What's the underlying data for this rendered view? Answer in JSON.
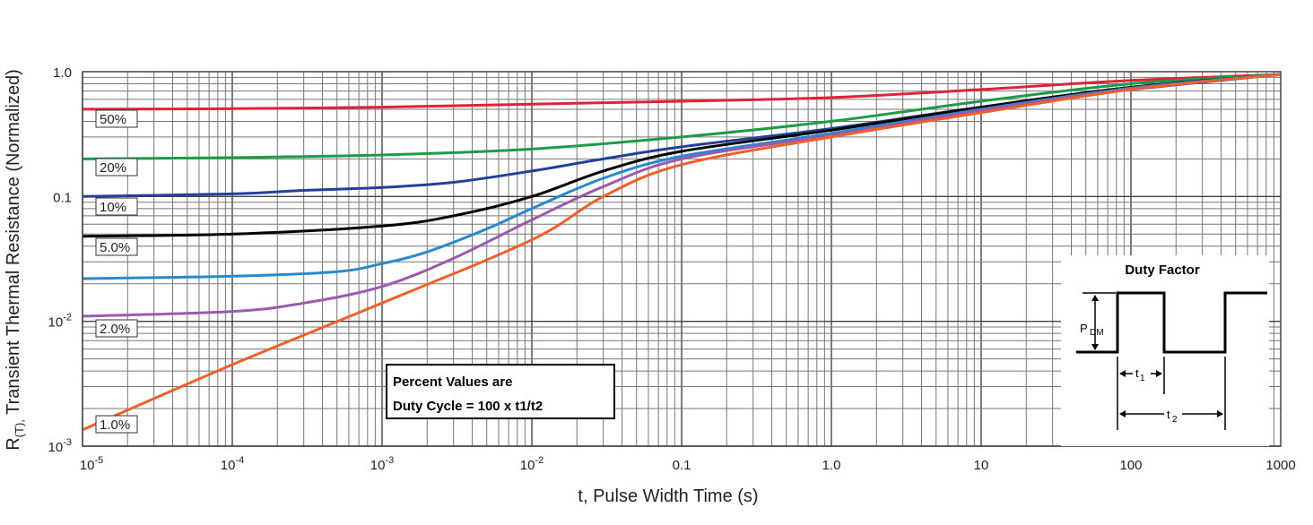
{
  "chart_data": {
    "type": "line",
    "x_scale": "log",
    "y_scale": "log",
    "xlim": [
      1e-05,
      1000
    ],
    "ylim": [
      0.001,
      1.0
    ],
    "grid": true,
    "xlabel": "t, Pulse Width Time (s)",
    "ylabel_prefix": "R",
    "ylabel_sub": "(T),",
    "ylabel": "Transient Thermal Resistance (Normalized)",
    "x_ticks": [
      {
        "base": "10",
        "exp": "-5"
      },
      {
        "base": "10",
        "exp": "-4"
      },
      {
        "base": "10",
        "exp": "-3"
      },
      {
        "base": "10",
        "exp": "-2"
      },
      {
        "base": "0.1",
        "exp": ""
      },
      {
        "base": "1.0",
        "exp": ""
      },
      {
        "base": "10",
        "exp": ""
      },
      {
        "base": "100",
        "exp": ""
      },
      {
        "base": "1000",
        "exp": ""
      }
    ],
    "y_ticks": [
      {
        "base": "1.0",
        "exp": ""
      },
      {
        "base": "0.1",
        "exp": ""
      },
      {
        "base": "10",
        "exp": "-2"
      },
      {
        "base": "10",
        "exp": "-3"
      }
    ],
    "series": [
      {
        "name": "50%",
        "color": "#e0223a",
        "x": [
          1e-05,
          0.0001,
          0.001,
          0.01,
          0.1,
          1,
          10,
          100,
          1000
        ],
        "y": [
          0.5,
          0.505,
          0.52,
          0.55,
          0.58,
          0.62,
          0.72,
          0.85,
          0.95
        ]
      },
      {
        "name": "20%",
        "color": "#1f9a4a",
        "x": [
          1e-05,
          0.0001,
          0.001,
          0.01,
          0.1,
          1,
          10,
          100,
          1000
        ],
        "y": [
          0.2,
          0.205,
          0.215,
          0.24,
          0.3,
          0.4,
          0.58,
          0.8,
          0.95
        ]
      },
      {
        "name": "10%",
        "color": "#24409a",
        "x": [
          1e-05,
          0.0001,
          0.0003,
          0.001,
          0.003,
          0.01,
          0.03,
          0.1,
          1,
          10,
          100,
          1000
        ],
        "y": [
          0.1,
          0.105,
          0.112,
          0.118,
          0.13,
          0.16,
          0.2,
          0.25,
          0.35,
          0.52,
          0.72,
          0.95
        ]
      },
      {
        "name": "5.0%",
        "color": "#000000",
        "x": [
          1e-05,
          0.0001,
          0.001,
          0.003,
          0.01,
          0.03,
          0.1,
          1,
          10,
          100,
          1000
        ],
        "y": [
          0.048,
          0.05,
          0.058,
          0.07,
          0.1,
          0.16,
          0.23,
          0.34,
          0.52,
          0.75,
          0.95
        ]
      },
      {
        "name": "2.0%",
        "color": "#2a88cc",
        "x": [
          1e-05,
          0.0001,
          0.0005,
          0.001,
          0.002,
          0.005,
          0.01,
          0.03,
          0.1,
          1,
          10,
          100,
          1000
        ],
        "y": [
          0.022,
          0.023,
          0.025,
          0.029,
          0.036,
          0.055,
          0.08,
          0.14,
          0.21,
          0.32,
          0.5,
          0.74,
          0.95
        ]
      },
      {
        "name": "1.0%",
        "color": "#9a5ab0",
        "x": [
          1e-05,
          0.0001,
          0.0003,
          0.001,
          0.003,
          0.01,
          0.03,
          0.1,
          1,
          10,
          100,
          1000
        ],
        "y": [
          0.011,
          0.012,
          0.014,
          0.019,
          0.032,
          0.065,
          0.12,
          0.2,
          0.31,
          0.49,
          0.73,
          0.95
        ]
      },
      {
        "name": "",
        "color": "#f0602a",
        "x": [
          1e-05,
          0.0001,
          0.001,
          0.01,
          0.03,
          0.1,
          1,
          10,
          100,
          1000
        ],
        "y": [
          0.00135,
          0.0045,
          0.014,
          0.045,
          0.1,
          0.18,
          0.3,
          0.47,
          0.72,
          0.95
        ]
      }
    ],
    "duty_labels": [
      "50%",
      "20%",
      "10%",
      "5.0%",
      "2.0%",
      "1.0%"
    ],
    "annotation": {
      "line1": "Percent Values are",
      "line2": "Duty Cycle = 100 x t1/t2"
    },
    "inset": {
      "title": "Duty Factor",
      "p_label": "P",
      "p_sub": "DM",
      "t1_label": "t",
      "t1_sub": "1",
      "t2_label": "t",
      "t2_sub": "2"
    }
  }
}
